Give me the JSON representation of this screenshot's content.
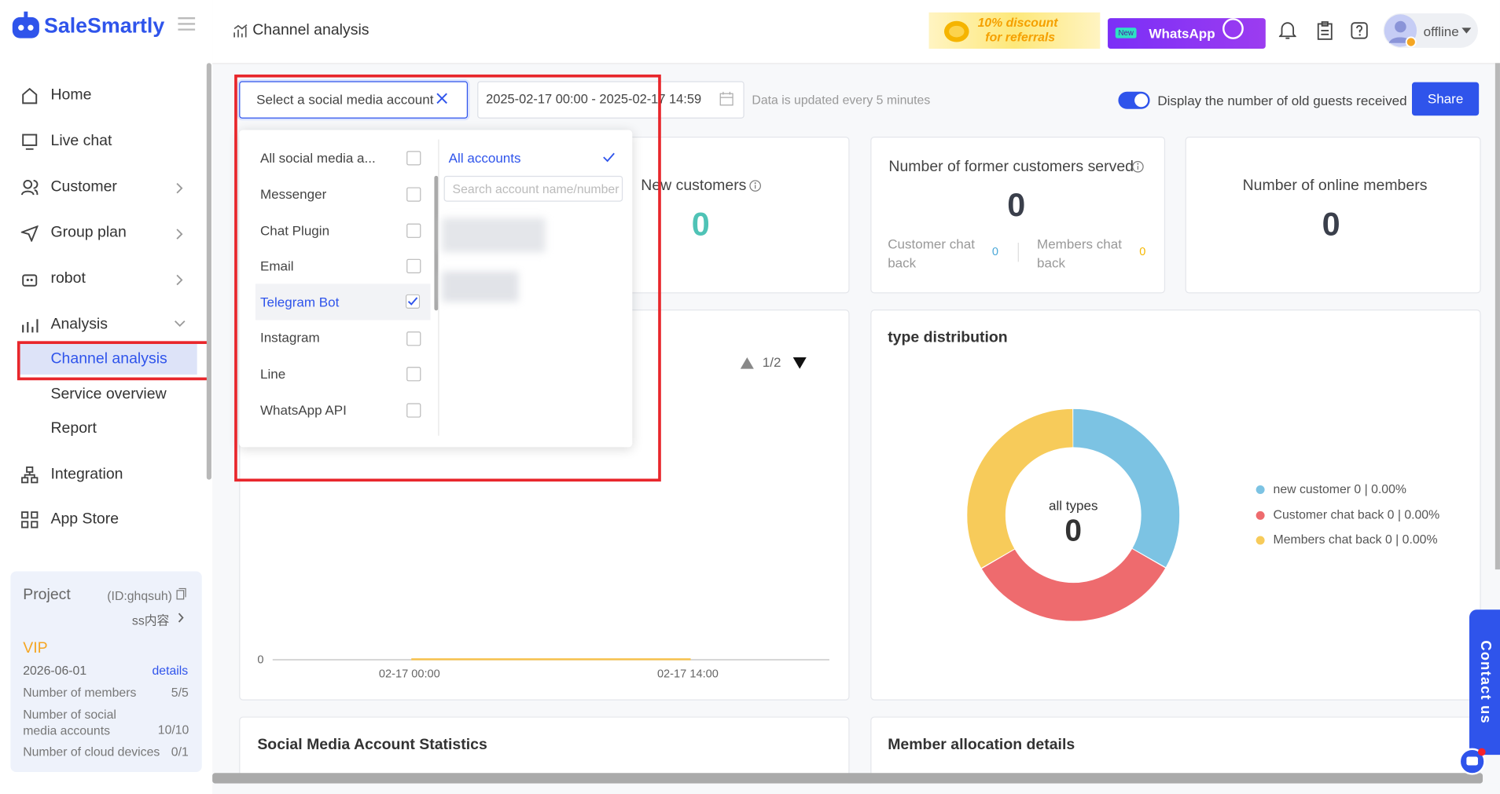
{
  "sidebar": {
    "brand": "SaleSmartly",
    "nav": [
      "Home",
      "Live chat",
      "Customer",
      "Group plan",
      "robot",
      "Analysis",
      "Channel analysis",
      "Service overview",
      "Report",
      "Integration",
      "App Store"
    ]
  },
  "project": {
    "title": "Project",
    "id": "(ID:ghqsuh)",
    "name": "ss内容",
    "plan": "VIP",
    "expiry": "2026-06-01",
    "details": "details",
    "stats": [
      [
        "Number of members",
        "5/5"
      ],
      [
        "Number of social media accounts",
        "10/10"
      ],
      [
        "Number of cloud devices",
        "0/1"
      ]
    ]
  },
  "header": {
    "page_title": "Channel analysis",
    "promo": [
      "10% discount",
      "for referrals"
    ],
    "whatsapp_badge": "New",
    "whatsapp": "WhatsApp",
    "status": "offline"
  },
  "toolbar": {
    "account_select": "Select a social media account",
    "date_range": "2025-02-17 00:00 - 2025-02-17 14:59",
    "update_note": "Data is updated every 5 minutes",
    "toggle_label": "Display the number of old guests received",
    "share": "Share"
  },
  "dropdown": {
    "channels": [
      "All social media a...",
      "Messenger",
      "Chat Plugin",
      "Email",
      "Telegram Bot",
      "Instagram",
      "Line",
      "WhatsApp API"
    ],
    "accounts": "All accounts",
    "search_placeholder": "Search account name/number"
  },
  "cards": {
    "new_customers": {
      "label": "New customers",
      "value": 0
    },
    "former": {
      "label": "Number of former customers served",
      "value": 0,
      "customer_chat_back": "Customer chat back",
      "customer_chat_back_value": 0,
      "members_chat_back": "Members chat back",
      "members_chat_back_value": 0
    },
    "online": {
      "label": "Number of online members",
      "value": 0
    }
  },
  "trend": {
    "pager": "1/2",
    "y_tick": 0,
    "x_labels": [
      "02-17 00:00",
      "02-17 14:00"
    ]
  },
  "type_distribution": {
    "title": "type distribution",
    "center_label": "all types",
    "center_value": 0,
    "legend": [
      "new customer 0 | 0.00%",
      "Customer chat back 0 | 0.00%",
      "Members chat back 0 | 0.00%"
    ]
  },
  "bottom": [
    "Social Media Account Statistics",
    "Member allocation details"
  ],
  "contact": "Contact us"
}
